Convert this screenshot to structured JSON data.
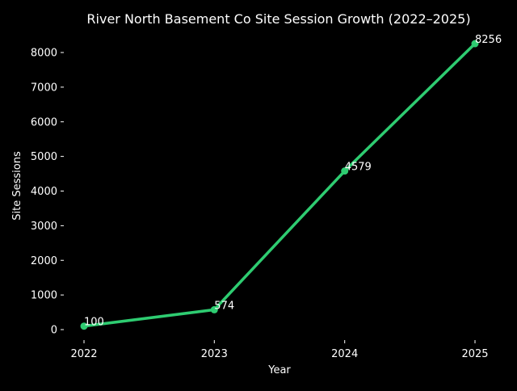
{
  "chart_data": {
    "type": "line",
    "title": "River North Basement Co Site Session Growth (2022–2025)",
    "xlabel": "Year",
    "ylabel": "Site Sessions",
    "x": [
      "2022",
      "2023",
      "2024",
      "2025"
    ],
    "series": [
      {
        "name": "Site Sessions",
        "values": [
          100,
          574,
          4579,
          8256
        ]
      }
    ],
    "data_labels": [
      "100",
      "574",
      "4579",
      "8256"
    ],
    "yticks": [
      "0",
      "1000",
      "2000",
      "3000",
      "4000",
      "5000",
      "6000",
      "7000",
      "8000"
    ],
    "ylim": [
      -413,
      8669
    ],
    "grid": false,
    "line_color": "#2ecc71",
    "background": "#000000"
  }
}
